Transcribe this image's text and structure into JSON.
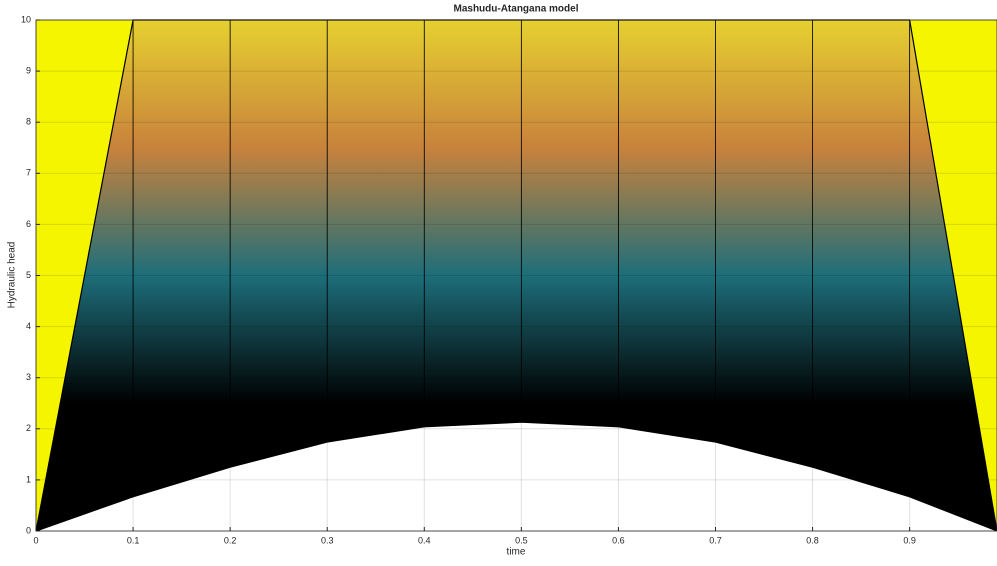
{
  "chart_data": {
    "type": "mesh",
    "title": "Mashudu-Atangana model",
    "x_label": "time",
    "y_label": "Hydraulic head",
    "x": [
      0,
      0.1,
      0.2,
      0.3,
      0.4,
      0.5,
      0.6,
      0.7,
      0.8,
      0.9,
      0.99
    ],
    "series": [
      {
        "color": "#000000",
        "values": [
          0,
          0.67,
          1.25,
          1.74,
          2.04,
          2.13,
          2.04,
          1.74,
          1.25,
          0.67,
          0
        ]
      },
      {
        "color": "#000000",
        "values": [
          0,
          10,
          10,
          10,
          10,
          10,
          10,
          10,
          10,
          10,
          0
        ]
      }
    ],
    "background_color": "#f5f500",
    "colormap": [
      "#000000",
      "#000000",
      "#1d6e7a",
      "#c8823c",
      "#e6d030"
    ],
    "xlim": [
      0,
      0.99
    ],
    "ylim": [
      0,
      10
    ],
    "xticks": [
      0,
      0.1,
      0.2,
      0.3,
      0.4,
      0.5,
      0.6,
      0.7,
      0.8,
      0.9
    ],
    "yticks": [
      0,
      1,
      2,
      3,
      4,
      5,
      6,
      7,
      8,
      9,
      10
    ],
    "grid": true
  }
}
